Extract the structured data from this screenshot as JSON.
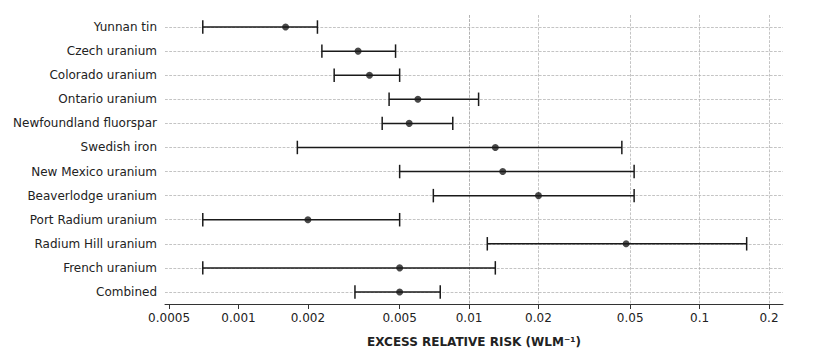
{
  "chart_data": {
    "type": "interval",
    "xlabel": "EXCESS RELATIVE RISK (WLM⁻¹)",
    "categories": [
      "Yunnan tin",
      "Czech uranium",
      "Colorado uranium",
      "Ontario uranium",
      "Newfoundland fluorspar",
      "Swedish iron",
      "New Mexico uranium",
      "Beaverlodge uranium",
      "Port Radium uranium",
      "Radium Hill uranium",
      "French uranium",
      "Combined"
    ],
    "values": [
      0.0016,
      0.0033,
      0.0037,
      0.006,
      0.0055,
      0.013,
      0.014,
      0.02,
      0.002,
      0.048,
      0.005,
      0.005
    ],
    "lower": [
      0.0007,
      0.0023,
      0.0026,
      0.0045,
      0.0042,
      0.0018,
      0.005,
      0.007,
      0.0007,
      0.012,
      0.0007,
      0.0032
    ],
    "upper": [
      0.0022,
      0.0048,
      0.005,
      0.011,
      0.0085,
      0.046,
      0.052,
      0.052,
      0.005,
      0.16,
      0.013,
      0.0075
    ],
    "color": "#1a1a1a",
    "log": "x",
    "xlim": [
      0.00048,
      0.23
    ],
    "xticks": [
      0.0005,
      0.001,
      0.002,
      0.005,
      0.01,
      0.02,
      0.05,
      0.1,
      0.2
    ],
    "grid": true
  }
}
